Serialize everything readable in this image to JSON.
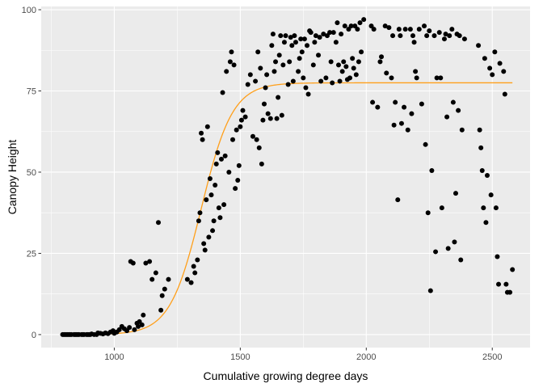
{
  "chart_data": {
    "type": "scatter",
    "xlabel": "Cumulative growing degree days",
    "ylabel": "Canopy Height",
    "xlim": [
      710,
      2650
    ],
    "ylim": [
      -4,
      101
    ],
    "x_ticks": [
      1000,
      1500,
      2000,
      2500
    ],
    "y_ticks": [
      0,
      25,
      50,
      75,
      100
    ],
    "x_tick_labels": [
      "1000",
      "1500",
      "2000",
      "2500"
    ],
    "y_tick_labels": [
      "0",
      "25",
      "50",
      "75",
      "100"
    ],
    "grid": true,
    "colors": {
      "panel": "#ebebeb",
      "grid_major": "#ffffff",
      "points": "#000000",
      "fit": "#ff9f1a"
    },
    "series": [
      {
        "type": "scatter",
        "points": [
          [
            795,
            0
          ],
          [
            800,
            0
          ],
          [
            805,
            0
          ],
          [
            810,
            0
          ],
          [
            815,
            0
          ],
          [
            820,
            0
          ],
          [
            825,
            0
          ],
          [
            830,
            0
          ],
          [
            840,
            0
          ],
          [
            845,
            0
          ],
          [
            850,
            0
          ],
          [
            855,
            0
          ],
          [
            860,
            0
          ],
          [
            870,
            0
          ],
          [
            875,
            0
          ],
          [
            880,
            0
          ],
          [
            890,
            0
          ],
          [
            895,
            0
          ],
          [
            900,
            0
          ],
          [
            905,
            0
          ],
          [
            910,
            0.2
          ],
          [
            920,
            0
          ],
          [
            930,
            0
          ],
          [
            935,
            0.5
          ],
          [
            945,
            0.4
          ],
          [
            955,
            0.2
          ],
          [
            965,
            0.5
          ],
          [
            975,
            0.3
          ],
          [
            985,
            0.8
          ],
          [
            995,
            1.2
          ],
          [
            1000,
            0.4
          ],
          [
            1010,
            0.8
          ],
          [
            1020,
            1.5
          ],
          [
            1030,
            2.5
          ],
          [
            1040,
            1.8
          ],
          [
            1050,
            1.2
          ],
          [
            1060,
            2.2
          ],
          [
            1065,
            22.5
          ],
          [
            1075,
            22
          ],
          [
            1080,
            1.5
          ],
          [
            1090,
            3.5
          ],
          [
            1095,
            2.5
          ],
          [
            1100,
            4
          ],
          [
            1110,
            3
          ],
          [
            1115,
            6
          ],
          [
            1125,
            22
          ],
          [
            1140,
            22.5
          ],
          [
            1150,
            17
          ],
          [
            1165,
            19
          ],
          [
            1175,
            34.5
          ],
          [
            1185,
            7.5
          ],
          [
            1190,
            12
          ],
          [
            1200,
            14
          ],
          [
            1215,
            17
          ],
          [
            1290,
            17
          ],
          [
            1305,
            16
          ],
          [
            1315,
            21
          ],
          [
            1320,
            19
          ],
          [
            1330,
            23
          ],
          [
            1335,
            35
          ],
          [
            1340,
            37.5
          ],
          [
            1345,
            62
          ],
          [
            1350,
            60
          ],
          [
            1355,
            28
          ],
          [
            1360,
            26
          ],
          [
            1365,
            41.5
          ],
          [
            1370,
            64
          ],
          [
            1375,
            30
          ],
          [
            1380,
            48
          ],
          [
            1385,
            43
          ],
          [
            1390,
            32
          ],
          [
            1395,
            35
          ],
          [
            1400,
            46
          ],
          [
            1405,
            52.5
          ],
          [
            1410,
            56
          ],
          [
            1415,
            39
          ],
          [
            1420,
            36
          ],
          [
            1425,
            54
          ],
          [
            1430,
            74.5
          ],
          [
            1435,
            40
          ],
          [
            1440,
            55
          ],
          [
            1445,
            81
          ],
          [
            1455,
            50
          ],
          [
            1460,
            84
          ],
          [
            1465,
            87
          ],
          [
            1470,
            60
          ],
          [
            1475,
            83
          ],
          [
            1480,
            45
          ],
          [
            1485,
            63
          ],
          [
            1490,
            47.5
          ],
          [
            1495,
            52
          ],
          [
            1500,
            64
          ],
          [
            1505,
            66
          ],
          [
            1510,
            69
          ],
          [
            1520,
            67
          ],
          [
            1530,
            77
          ],
          [
            1540,
            80
          ],
          [
            1550,
            61
          ],
          [
            1560,
            78
          ],
          [
            1565,
            60
          ],
          [
            1570,
            87
          ],
          [
            1575,
            57.5
          ],
          [
            1580,
            82
          ],
          [
            1585,
            52.5
          ],
          [
            1590,
            66
          ],
          [
            1595,
            71
          ],
          [
            1600,
            76
          ],
          [
            1605,
            80
          ],
          [
            1610,
            68
          ],
          [
            1620,
            66.5
          ],
          [
            1625,
            89
          ],
          [
            1630,
            92.5
          ],
          [
            1635,
            81
          ],
          [
            1640,
            84
          ],
          [
            1645,
            66.5
          ],
          [
            1650,
            73
          ],
          [
            1655,
            86
          ],
          [
            1660,
            92
          ],
          [
            1665,
            67.5
          ],
          [
            1670,
            83
          ],
          [
            1675,
            90
          ],
          [
            1680,
            92
          ],
          [
            1690,
            77
          ],
          [
            1695,
            84
          ],
          [
            1700,
            91.5
          ],
          [
            1705,
            89
          ],
          [
            1710,
            78
          ],
          [
            1715,
            92
          ],
          [
            1720,
            90
          ],
          [
            1730,
            81
          ],
          [
            1735,
            85
          ],
          [
            1740,
            91
          ],
          [
            1745,
            87
          ],
          [
            1750,
            79
          ],
          [
            1755,
            91
          ],
          [
            1760,
            76
          ],
          [
            1765,
            89
          ],
          [
            1770,
            74
          ],
          [
            1775,
            93.5
          ],
          [
            1780,
            93
          ],
          [
            1790,
            83
          ],
          [
            1795,
            90
          ],
          [
            1800,
            92
          ],
          [
            1810,
            86
          ],
          [
            1815,
            91.5
          ],
          [
            1820,
            78
          ],
          [
            1830,
            92.5
          ],
          [
            1840,
            79
          ],
          [
            1845,
            92
          ],
          [
            1855,
            93
          ],
          [
            1860,
            84
          ],
          [
            1865,
            77.5
          ],
          [
            1870,
            93
          ],
          [
            1880,
            90
          ],
          [
            1885,
            96
          ],
          [
            1890,
            83
          ],
          [
            1895,
            78
          ],
          [
            1900,
            92.5
          ],
          [
            1905,
            81
          ],
          [
            1910,
            84
          ],
          [
            1915,
            95
          ],
          [
            1920,
            82.5
          ],
          [
            1925,
            78.5
          ],
          [
            1930,
            94
          ],
          [
            1935,
            79
          ],
          [
            1940,
            95
          ],
          [
            1945,
            85
          ],
          [
            1950,
            82
          ],
          [
            1955,
            95
          ],
          [
            1960,
            80
          ],
          [
            1965,
            94
          ],
          [
            1970,
            84
          ],
          [
            1975,
            96
          ],
          [
            1980,
            87
          ],
          [
            1990,
            97
          ],
          [
            2020,
            95
          ],
          [
            2025,
            71.5
          ],
          [
            2030,
            94
          ],
          [
            2045,
            70
          ],
          [
            2055,
            84
          ],
          [
            2060,
            85.5
          ],
          [
            2075,
            95
          ],
          [
            2080,
            80.5
          ],
          [
            2090,
            94.5
          ],
          [
            2100,
            79
          ],
          [
            2105,
            92
          ],
          [
            2110,
            64.5
          ],
          [
            2115,
            71.5
          ],
          [
            2125,
            41.5
          ],
          [
            2130,
            94
          ],
          [
            2135,
            92
          ],
          [
            2140,
            65
          ],
          [
            2150,
            70
          ],
          [
            2155,
            94
          ],
          [
            2165,
            63
          ],
          [
            2175,
            94
          ],
          [
            2180,
            68
          ],
          [
            2185,
            92
          ],
          [
            2190,
            90
          ],
          [
            2195,
            81
          ],
          [
            2200,
            79
          ],
          [
            2210,
            94
          ],
          [
            2220,
            71
          ],
          [
            2230,
            95
          ],
          [
            2235,
            58.5
          ],
          [
            2240,
            92
          ],
          [
            2245,
            37.5
          ],
          [
            2250,
            93.5
          ],
          [
            2255,
            13.5
          ],
          [
            2260,
            50.5
          ],
          [
            2270,
            92
          ],
          [
            2275,
            25.5
          ],
          [
            2280,
            79
          ],
          [
            2290,
            93
          ],
          [
            2295,
            79
          ],
          [
            2300,
            39
          ],
          [
            2310,
            91
          ],
          [
            2315,
            92.5
          ],
          [
            2320,
            67
          ],
          [
            2325,
            26.5
          ],
          [
            2330,
            92
          ],
          [
            2340,
            94
          ],
          [
            2345,
            71.5
          ],
          [
            2350,
            28.5
          ],
          [
            2355,
            43.5
          ],
          [
            2360,
            92.5
          ],
          [
            2365,
            69
          ],
          [
            2370,
            92
          ],
          [
            2375,
            23
          ],
          [
            2380,
            63
          ],
          [
            2390,
            91
          ],
          [
            2445,
            89
          ],
          [
            2450,
            63
          ],
          [
            2455,
            57.5
          ],
          [
            2460,
            50.5
          ],
          [
            2465,
            39
          ],
          [
            2470,
            85
          ],
          [
            2475,
            34.5
          ],
          [
            2480,
            49
          ],
          [
            2490,
            82
          ],
          [
            2495,
            43
          ],
          [
            2500,
            80
          ],
          [
            2510,
            87
          ],
          [
            2515,
            39
          ],
          [
            2520,
            24
          ],
          [
            2525,
            15.5
          ],
          [
            2530,
            83.5
          ],
          [
            2545,
            81
          ],
          [
            2550,
            74
          ],
          [
            2555,
            15.5
          ],
          [
            2560,
            13
          ],
          [
            2570,
            13
          ],
          [
            2580,
            20
          ]
        ]
      },
      {
        "type": "line",
        "model": {
          "asymptote": 77.5,
          "midpoint": 1345,
          "scale": 62
        },
        "x_range": [
          795,
          2580
        ]
      }
    ]
  }
}
